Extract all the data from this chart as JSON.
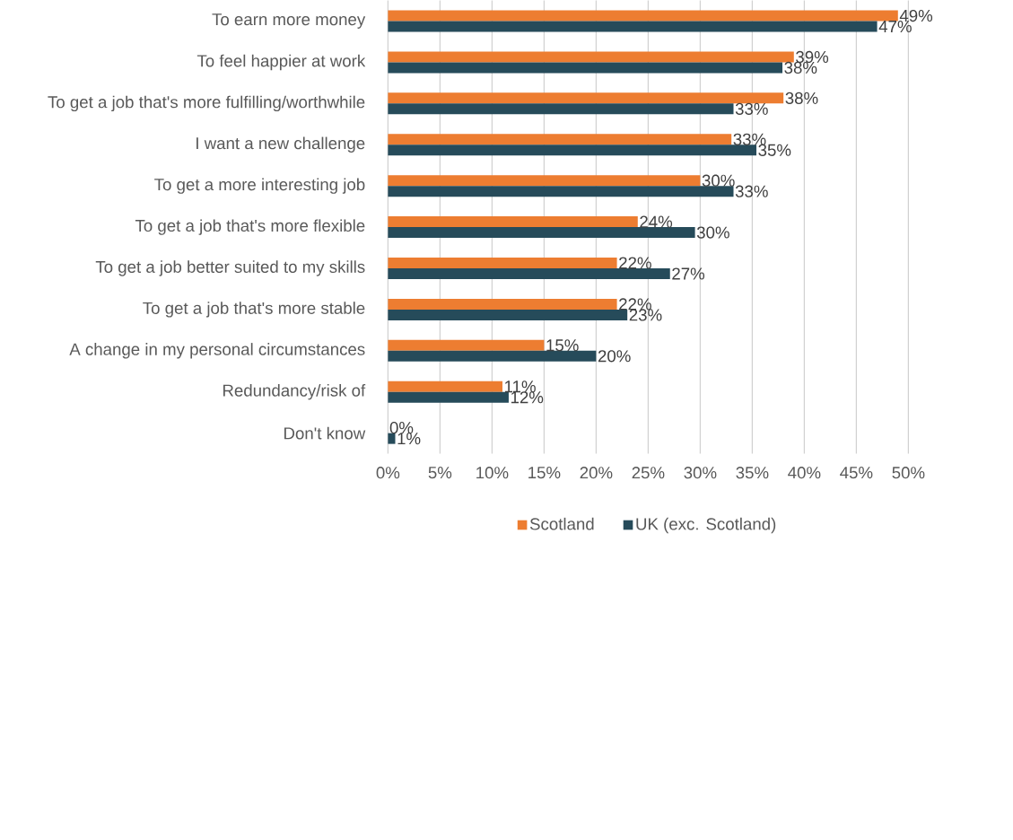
{
  "chart_data": {
    "type": "bar",
    "orientation": "horizontal",
    "categories": [
      "To earn more money",
      "To feel happier at work",
      "To get a job that's more fulfilling/worthwhile",
      "I want a new challenge",
      "To get a more interesting job",
      "To get a job that's more flexible",
      "To get a job better suited to my skills",
      "To get a job that's more stable",
      "A change in my personal circumstances",
      "Redundancy/risk of",
      "Don't know"
    ],
    "series": [
      {
        "name": "Scotland",
        "color": "#ed7d31",
        "values": [
          49.0,
          39.0,
          38.0,
          33.0,
          30.0,
          24.0,
          22.0,
          22.0,
          15.0,
          11.0,
          0.0
        ],
        "value_labels": [
          "49%",
          "39%",
          "38%",
          "33%",
          "30%",
          "24%",
          "22%",
          "22%",
          "15%",
          "11%",
          "0%"
        ]
      },
      {
        "name": "UK (exc. Scotland)",
        "color": "#264b5a",
        "values": [
          47.0,
          37.9,
          33.2,
          35.4,
          33.2,
          29.5,
          27.1,
          23.0,
          20.0,
          11.6,
          0.7
        ],
        "value_labels": [
          "47%",
          "38%",
          "33%",
          "35%",
          "33%",
          "30%",
          "27%",
          "23%",
          "20%",
          "12%",
          "1%"
        ]
      }
    ],
    "xlim": [
      0,
      50
    ],
    "xticks": [
      {
        "value": 0,
        "label": "0%"
      },
      {
        "value": 5,
        "label": "5%"
      },
      {
        "value": 10,
        "label": "10%"
      },
      {
        "value": 15,
        "label": "15%"
      },
      {
        "value": 20,
        "label": "20%"
      },
      {
        "value": 25,
        "label": "25%"
      },
      {
        "value": 30,
        "label": "30%"
      },
      {
        "value": 35,
        "label": "35%"
      },
      {
        "value": 40,
        "label": "40%"
      },
      {
        "value": 45,
        "label": "45%"
      },
      {
        "value": 50,
        "label": "50%"
      }
    ],
    "grid": "x",
    "legend": "bottom"
  }
}
